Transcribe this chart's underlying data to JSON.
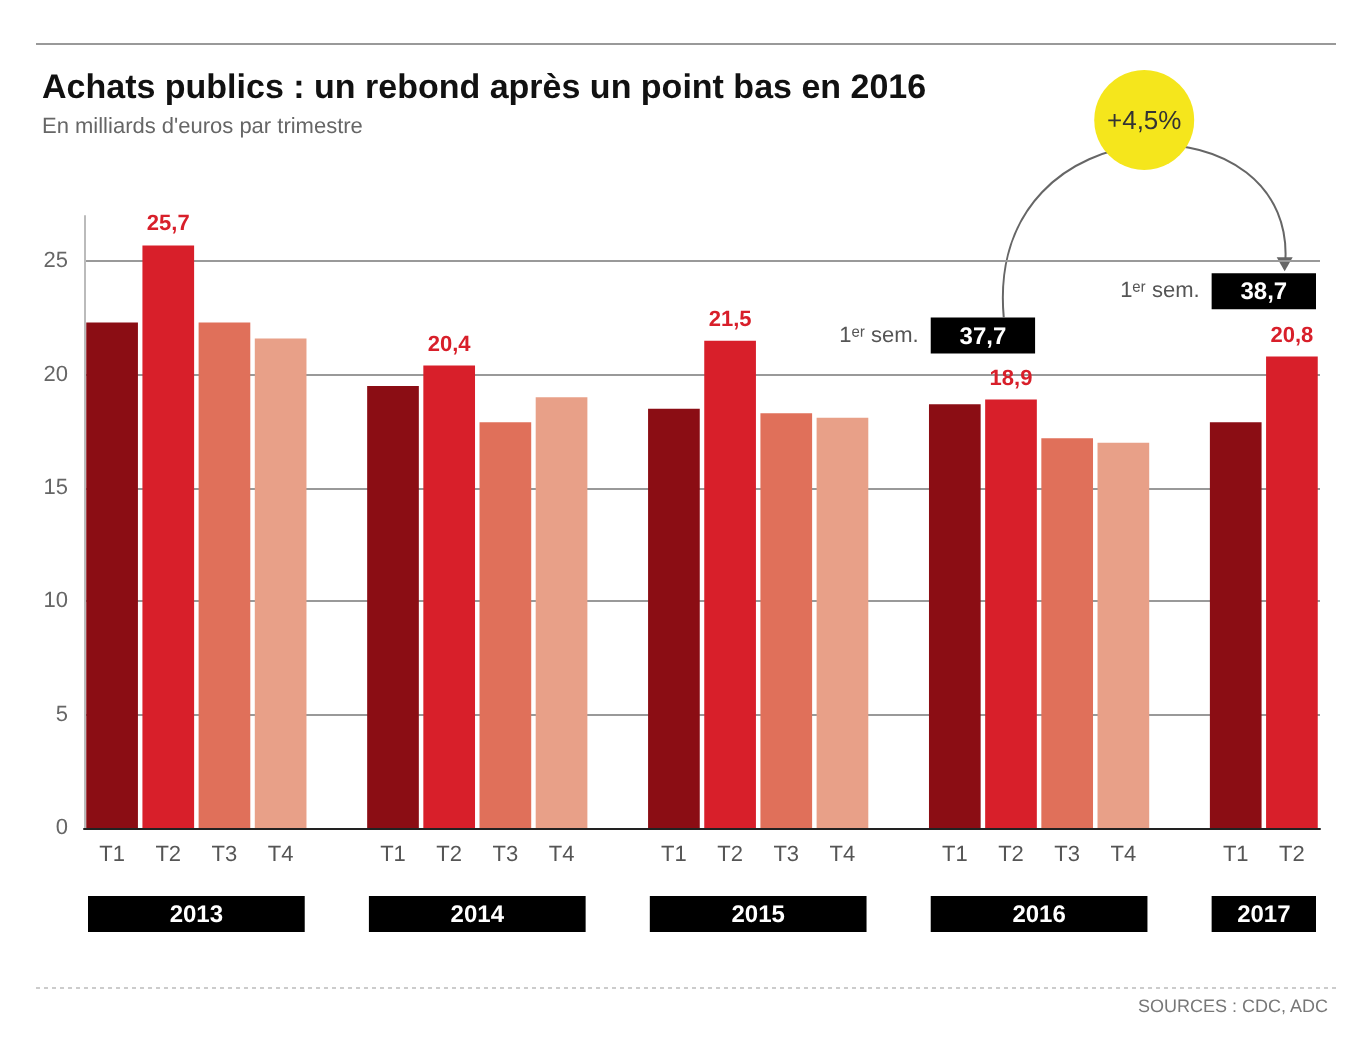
{
  "chart_data": {
    "type": "bar",
    "title": "Achats publics : un rebond après un point bas en 2016",
    "subtitle": "En milliards d'euros par trimestre",
    "categories": [
      "T1",
      "T2",
      "T3",
      "T4",
      null,
      "T1",
      "T2",
      "T3",
      "T4",
      null,
      "T1",
      "T2",
      "T3",
      "T4",
      null,
      "T1",
      "T2",
      "T3",
      "T4",
      null,
      "T1",
      "T2"
    ],
    "values": [
      22.3,
      25.7,
      22.3,
      21.6,
      null,
      19.5,
      20.4,
      17.9,
      19.0,
      null,
      18.5,
      21.5,
      18.3,
      18.1,
      null,
      18.7,
      18.9,
      17.2,
      17.0,
      null,
      17.9,
      20.8
    ],
    "colors": [
      "#8b0d14",
      "#d81f2a",
      "#e0705a",
      "#e8a088",
      null,
      "#8b0d14",
      "#d81f2a",
      "#e0705a",
      "#e8a088",
      null,
      "#8b0d14",
      "#d81f2a",
      "#e0705a",
      "#e8a088",
      null,
      "#8b0d14",
      "#d81f2a",
      "#e0705a",
      "#e8a088",
      null,
      "#8b0d14",
      "#d81f2a"
    ],
    "value_labels": [
      null,
      "25,7",
      null,
      null,
      null,
      null,
      "20,4",
      null,
      null,
      null,
      null,
      "21,5",
      null,
      null,
      null,
      null,
      "18,9",
      null,
      null,
      null,
      null,
      "20,8"
    ],
    "ylim": [
      0,
      27
    ],
    "yticks": [
      0,
      5,
      10,
      15,
      20,
      25
    ],
    "grid": "y",
    "annotations": [
      "2013",
      "2014",
      "2015",
      "2016",
      "2017",
      "1ᵉʳ sem.",
      "37,7",
      "1ᵉʳ sem.",
      "38,7",
      "+4,5%",
      "SOURCES : CDC, ADC"
    ]
  }
}
